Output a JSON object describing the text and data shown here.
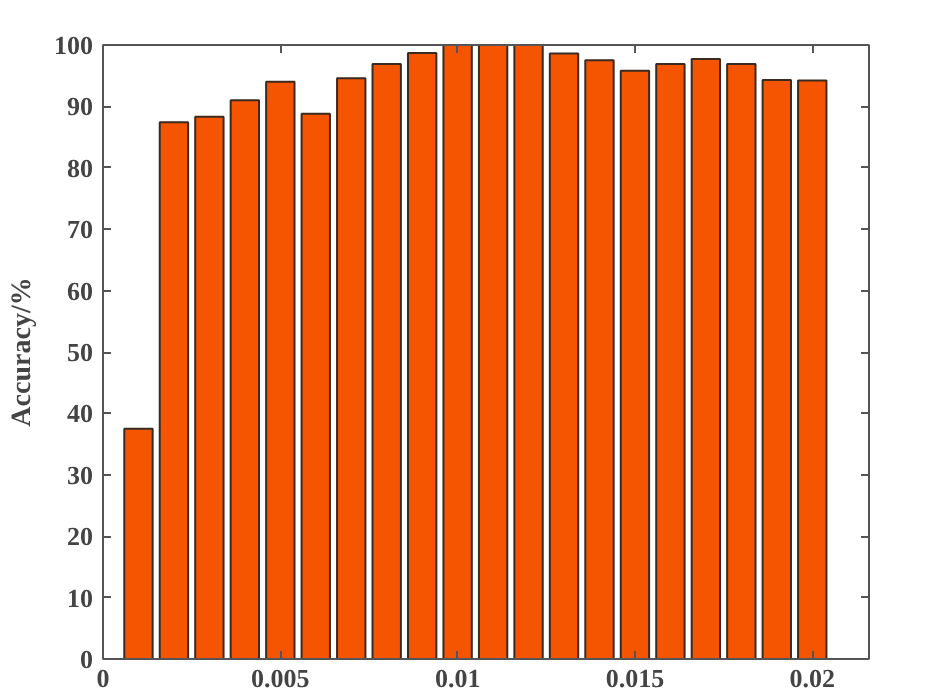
{
  "chart_data": {
    "type": "bar",
    "ylabel": "Accuracy/%",
    "x": [
      0.001,
      0.002,
      0.003,
      0.004,
      0.005,
      0.006,
      0.007,
      0.008,
      0.009,
      0.01,
      0.011,
      0.012,
      0.013,
      0.014,
      0.015,
      0.016,
      0.017,
      0.018,
      0.019,
      0.02
    ],
    "values": [
      37.5,
      87.4,
      88.3,
      91,
      94,
      88.8,
      94.6,
      96.9,
      98.7,
      100,
      100,
      100,
      98.6,
      97.5,
      95.8,
      96.9,
      97.7,
      96.9,
      94.3,
      94.2
    ],
    "color": "#f55500",
    "xlim": [
      0,
      0.0216
    ],
    "xticks": [
      0,
      0.005,
      0.01,
      0.015,
      0.02
    ],
    "ylim": [
      0,
      100
    ],
    "yticks": [
      0,
      10,
      20,
      30,
      40,
      50,
      60,
      70,
      80,
      90,
      100
    ],
    "grid": false
  }
}
